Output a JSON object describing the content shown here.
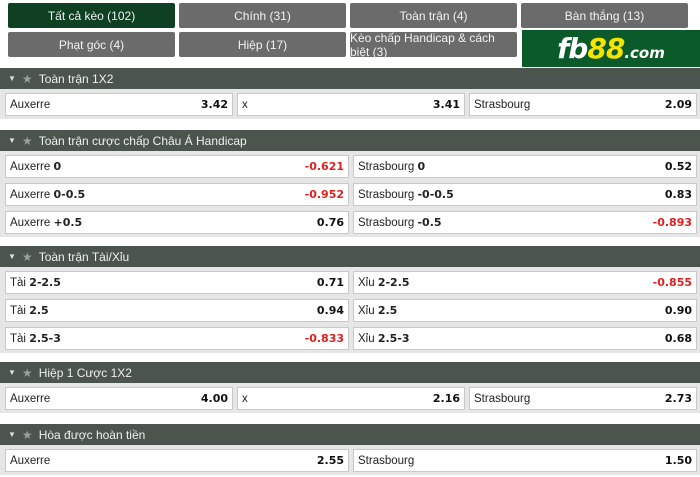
{
  "tabs": [
    {
      "label": "Tất cả kèo (102)",
      "active": true
    },
    {
      "label": "Chính (31)"
    },
    {
      "label": "Toàn trận (4)"
    },
    {
      "label": "Bàn thắng (13)"
    },
    {
      "label": "Phạt góc (4)"
    },
    {
      "label": "Hiệp (17)"
    },
    {
      "label": "Kèo chấp Handicap & cách biệt (3)"
    }
  ],
  "logo": {
    "text": "fb88.com"
  },
  "colors": {
    "header": "#4b544d",
    "active_tab": "#0f4023",
    "tab": "#6b6b6b",
    "negative": "#e0201e",
    "logo_bg": "#0b5a2a"
  },
  "sections": [
    {
      "title": "Toàn trận 1X2",
      "rows": [
        [
          {
            "name": "Auxerre",
            "line": "",
            "odds": "3.42"
          },
          {
            "name": "x",
            "line": "",
            "odds": "3.41"
          },
          {
            "name": "Strasbourg",
            "line": "",
            "odds": "2.09"
          }
        ]
      ]
    },
    {
      "title": "Toàn trận cược chấp Châu Á Handicap",
      "rows": [
        [
          {
            "name": "Auxerre",
            "line": "0",
            "odds": "-0.621"
          },
          {
            "name": "Strasbourg",
            "line": "0",
            "odds": "0.52"
          }
        ],
        [
          {
            "name": "Auxerre",
            "line": "0-0.5",
            "odds": "-0.952"
          },
          {
            "name": "Strasbourg",
            "line": "-0-0.5",
            "odds": "0.83"
          }
        ],
        [
          {
            "name": "Auxerre",
            "line": "+0.5",
            "odds": "0.76"
          },
          {
            "name": "Strasbourg",
            "line": "-0.5",
            "odds": "-0.893"
          }
        ]
      ]
    },
    {
      "title": "Toàn trận Tài/Xỉu",
      "rows": [
        [
          {
            "name": "Tài",
            "line": "2-2.5",
            "odds": "0.71"
          },
          {
            "name": "Xỉu",
            "line": "2-2.5",
            "odds": "-0.855"
          }
        ],
        [
          {
            "name": "Tài",
            "line": "2.5",
            "odds": "0.94"
          },
          {
            "name": "Xỉu",
            "line": "2.5",
            "odds": "0.90"
          }
        ],
        [
          {
            "name": "Tài",
            "line": "2.5-3",
            "odds": "-0.833"
          },
          {
            "name": "Xỉu",
            "line": "2.5-3",
            "odds": "0.68"
          }
        ]
      ]
    },
    {
      "title": "Hiệp 1 Cược 1X2",
      "rows": [
        [
          {
            "name": "Auxerre",
            "line": "",
            "odds": "4.00"
          },
          {
            "name": "x",
            "line": "",
            "odds": "2.16"
          },
          {
            "name": "Strasbourg",
            "line": "",
            "odds": "2.73"
          }
        ]
      ]
    },
    {
      "title": "Hòa được hoàn tiền",
      "rows": [
        [
          {
            "name": "Auxerre",
            "line": "",
            "odds": "2.55"
          },
          {
            "name": "Strasbourg",
            "line": "",
            "odds": "1.50"
          }
        ]
      ]
    }
  ]
}
